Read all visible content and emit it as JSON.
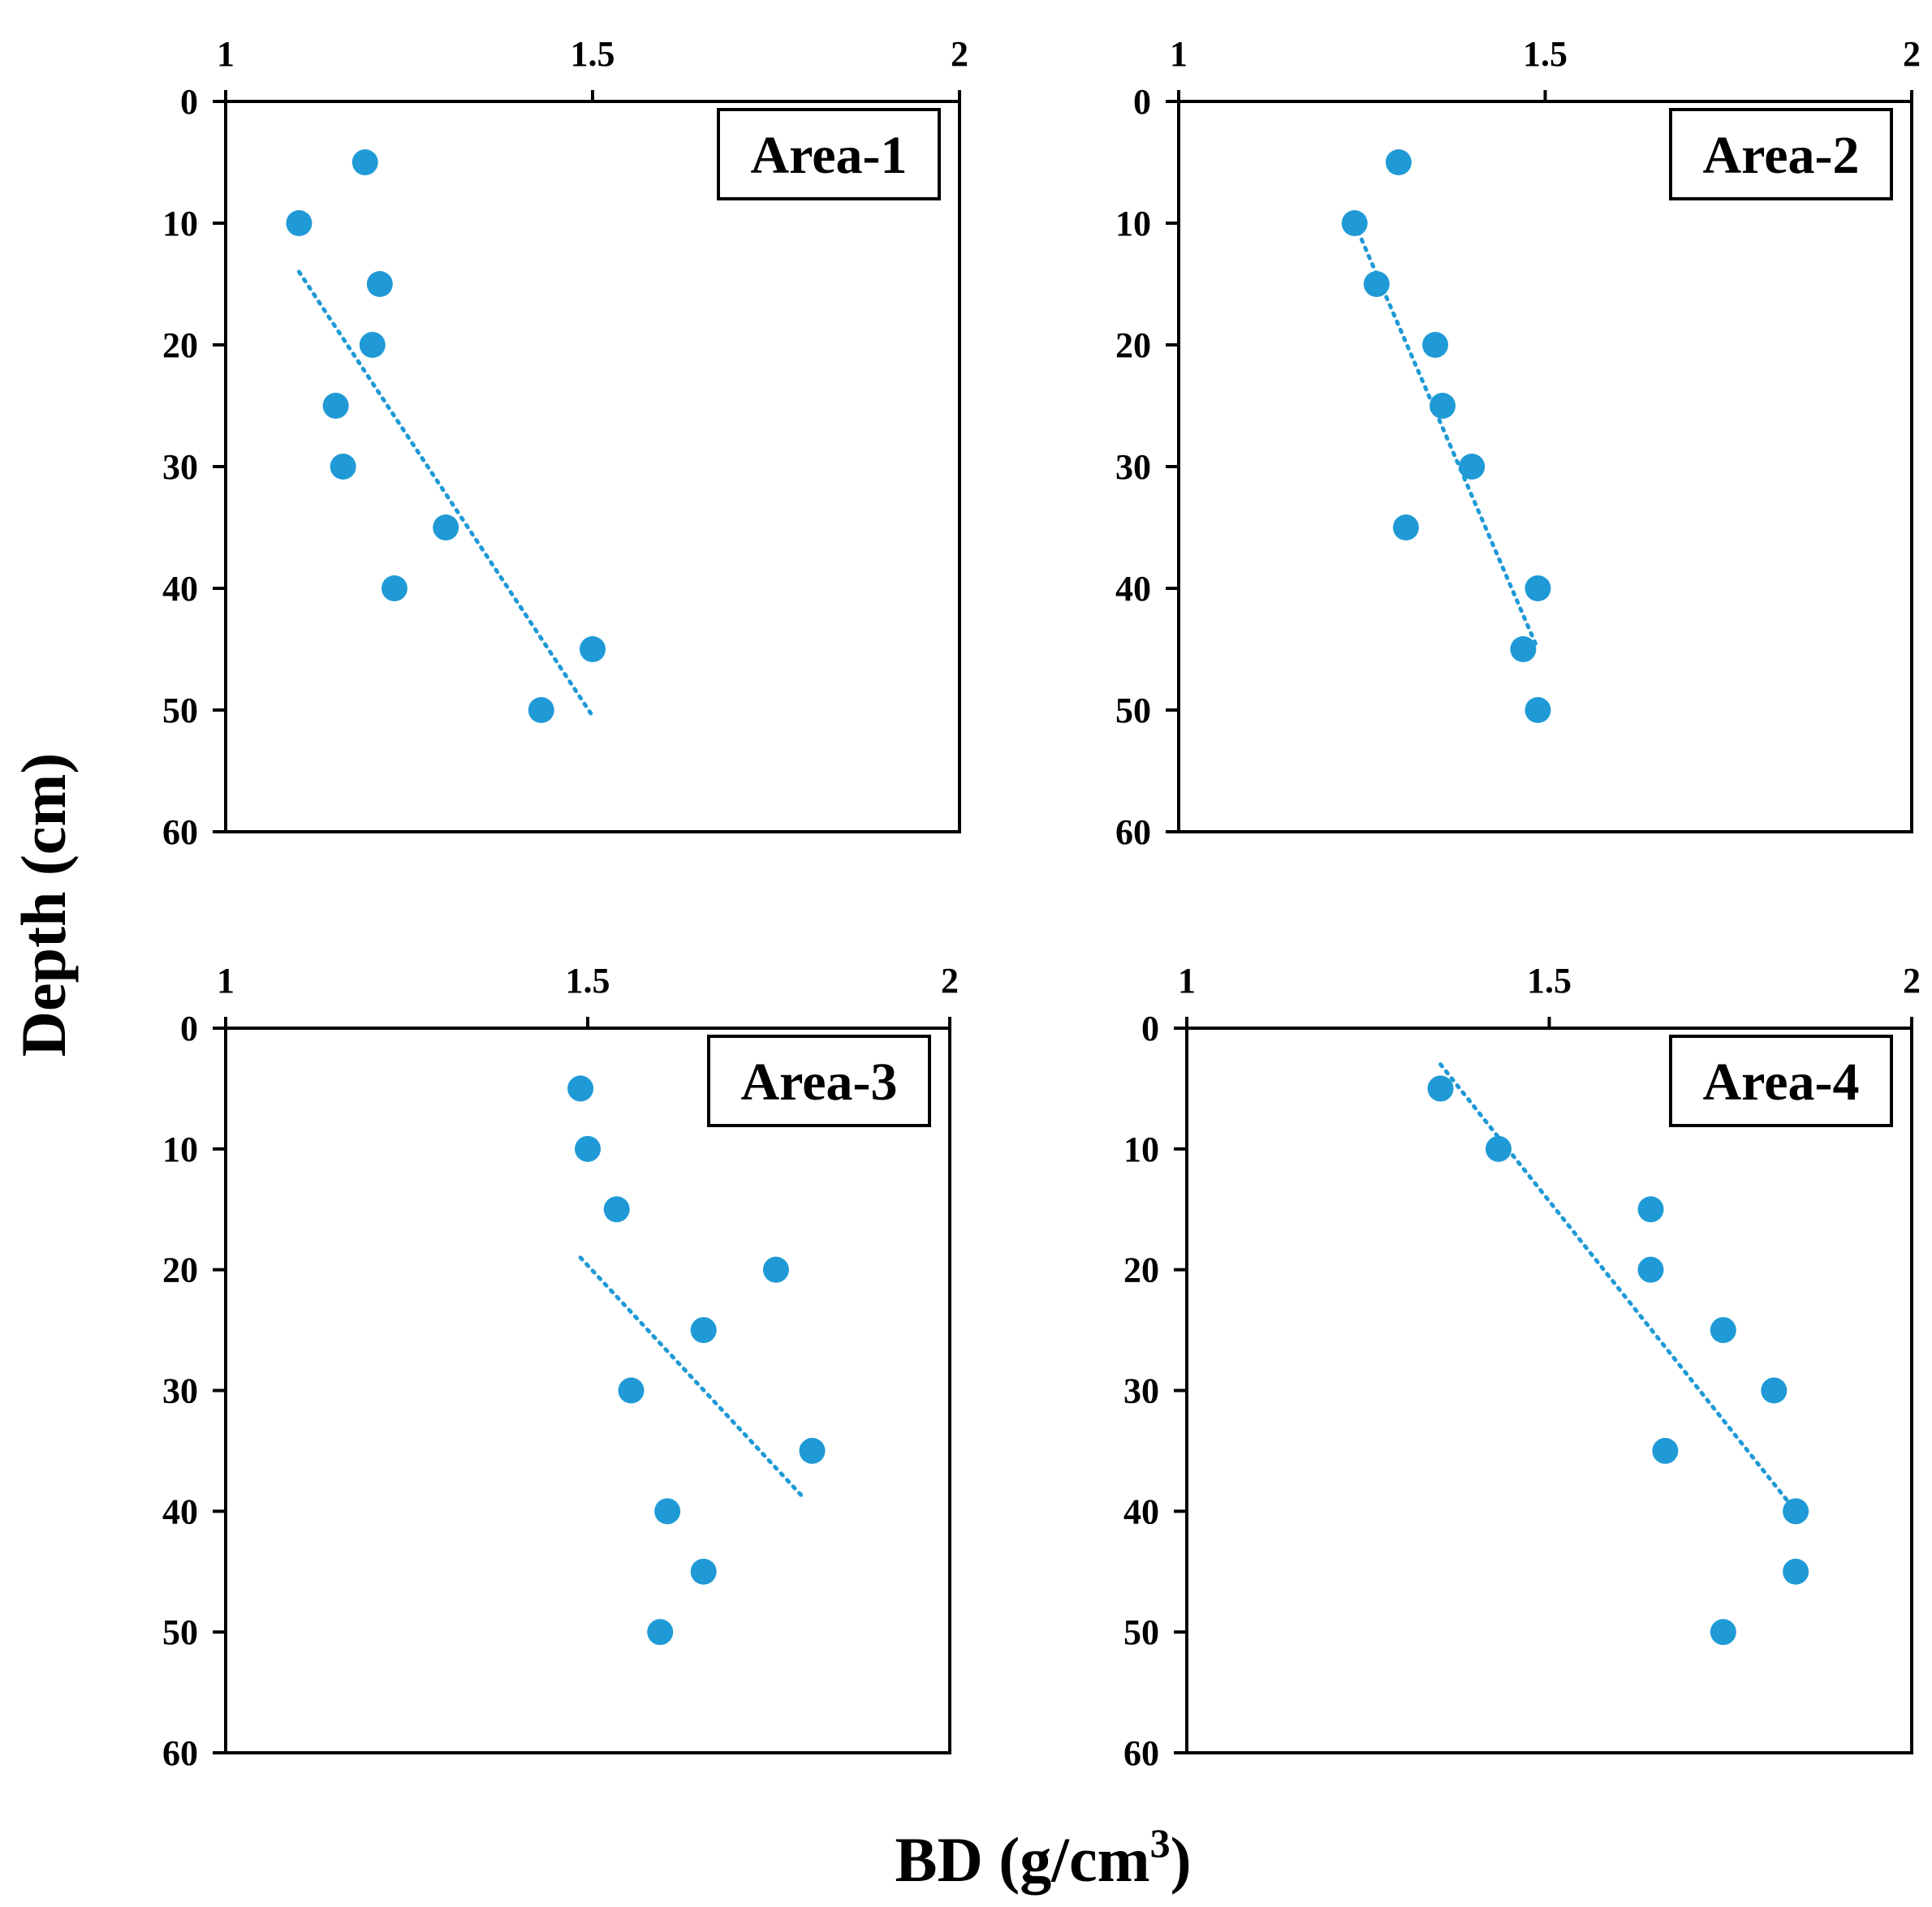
{
  "figure": {
    "y_axis_title": "Depth  (cm)",
    "x_axis_title": "BD  (g/cm",
    "x_axis_title_sup": "3",
    "x_axis_title_tail": ")"
  },
  "colors": {
    "marker": "#1f9ad6",
    "trend": "#1f9ad6",
    "axis": "#000000"
  },
  "chart_data": [
    {
      "type": "scatter",
      "title": "Area-1",
      "xlabel": "BD (g/cm3)",
      "ylabel": "Depth (cm)",
      "xlim": [
        1,
        2
      ],
      "ylim": [
        0,
        60
      ],
      "y_inverted": true,
      "x_axis_position": "top",
      "x_ticks": [
        "1",
        "1.5",
        "2"
      ],
      "y_ticks": [
        "0",
        "10",
        "20",
        "30",
        "40",
        "50",
        "60"
      ],
      "x": [
        1.19,
        1.1,
        1.21,
        1.2,
        1.15,
        1.16,
        1.3,
        1.23,
        1.5,
        1.43
      ],
      "y": [
        5,
        10,
        15,
        20,
        25,
        30,
        35,
        40,
        45,
        50
      ],
      "trendline": {
        "style": "dotted",
        "x": [
          1.1,
          1.5
        ],
        "y": [
          14,
          50.5
        ]
      },
      "legend": "top-right label box"
    },
    {
      "type": "scatter",
      "title": "Area-2",
      "xlabel": "BD (g/cm3)",
      "ylabel": "Depth (cm)",
      "xlim": [
        1,
        2
      ],
      "ylim": [
        0,
        60
      ],
      "y_inverted": true,
      "x_axis_position": "top",
      "x_ticks": [
        "1",
        "1.5",
        "2"
      ],
      "y_ticks": [
        "0",
        "10",
        "20",
        "30",
        "40",
        "50",
        "60"
      ],
      "x": [
        1.3,
        1.24,
        1.27,
        1.35,
        1.36,
        1.4,
        1.31,
        1.49,
        1.47,
        1.49
      ],
      "y": [
        5,
        10,
        15,
        20,
        25,
        30,
        35,
        40,
        45,
        50
      ],
      "trendline": {
        "style": "dotted",
        "x": [
          1.24,
          1.49
        ],
        "y": [
          10,
          45
        ]
      },
      "legend": "top-right label box"
    },
    {
      "type": "scatter",
      "title": "Area-3",
      "xlabel": "BD (g/cm3)",
      "ylabel": "Depth (cm)",
      "xlim": [
        1,
        2
      ],
      "ylim": [
        0,
        60
      ],
      "y_inverted": true,
      "x_axis_position": "top",
      "x_ticks": [
        "1",
        "1.5",
        "2"
      ],
      "y_ticks": [
        "0",
        "10",
        "20",
        "30",
        "40",
        "50",
        "60"
      ],
      "x": [
        1.49,
        1.5,
        1.54,
        1.76,
        1.66,
        1.56,
        1.81,
        1.61,
        1.66,
        1.6
      ],
      "y": [
        5,
        10,
        15,
        20,
        25,
        30,
        35,
        40,
        45,
        50
      ],
      "trendline": {
        "style": "dotted",
        "x": [
          1.49,
          1.8
        ],
        "y": [
          19,
          39
        ]
      },
      "legend": "top-right label box"
    },
    {
      "type": "scatter",
      "title": "Area-4",
      "xlabel": "BD (g/cm3)",
      "ylabel": "Depth (cm)",
      "xlim": [
        1,
        2
      ],
      "ylim": [
        0,
        60
      ],
      "y_inverted": true,
      "x_axis_position": "top",
      "x_ticks": [
        "1",
        "1.5",
        "2"
      ],
      "y_ticks": [
        "0",
        "10",
        "20",
        "30",
        "40",
        "50",
        "60"
      ],
      "x": [
        1.35,
        1.43,
        1.64,
        1.64,
        1.74,
        1.81,
        1.66,
        1.84,
        1.84,
        1.74
      ],
      "y": [
        5,
        10,
        15,
        20,
        25,
        30,
        35,
        40,
        45,
        50
      ],
      "trendline": {
        "style": "dotted",
        "x": [
          1.35,
          1.84
        ],
        "y": [
          3,
          40
        ]
      },
      "legend": "top-right label box"
    }
  ]
}
